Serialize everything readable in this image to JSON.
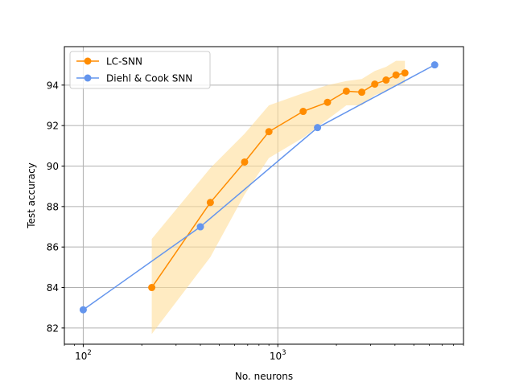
{
  "chart_data": {
    "type": "line",
    "xlabel": "No. neurons",
    "ylabel": "Test accuracy",
    "xscale": "log",
    "xlim": [
      80,
      9000
    ],
    "ylim": [
      81.2,
      95.9
    ],
    "grid": true,
    "legend_position": "top-left",
    "x_ticks": [
      {
        "value": 100,
        "base": "10",
        "exp": "2"
      },
      {
        "value": 1000,
        "base": "10",
        "exp": "3"
      }
    ],
    "y_ticks": [
      82,
      84,
      86,
      88,
      90,
      92,
      94
    ],
    "series": [
      {
        "name": "LC-SNN",
        "color": "#ff8c00",
        "band_color": "#ffdd99",
        "x": [
          225,
          450,
          675,
          900,
          1350,
          1800,
          2250,
          2700,
          3150,
          3600,
          4050,
          4500
        ],
        "y": [
          84.0,
          88.2,
          90.2,
          91.7,
          92.7,
          93.15,
          93.7,
          93.65,
          94.05,
          94.25,
          94.5,
          94.6
        ],
        "lower": [
          81.7,
          85.5,
          88.6,
          90.4,
          91.4,
          92.3,
          93.0,
          93.0,
          93.5,
          93.7,
          94.0,
          94.1
        ],
        "upper": [
          86.4,
          89.9,
          91.6,
          93.0,
          93.6,
          94.0,
          94.2,
          94.3,
          94.7,
          94.9,
          95.2,
          95.2
        ]
      },
      {
        "name": "Diehl & Cook SNN",
        "color": "#6495ed",
        "x": [
          100,
          400,
          1600,
          6400
        ],
        "y": [
          82.9,
          87.0,
          91.9,
          95.0
        ]
      }
    ]
  }
}
